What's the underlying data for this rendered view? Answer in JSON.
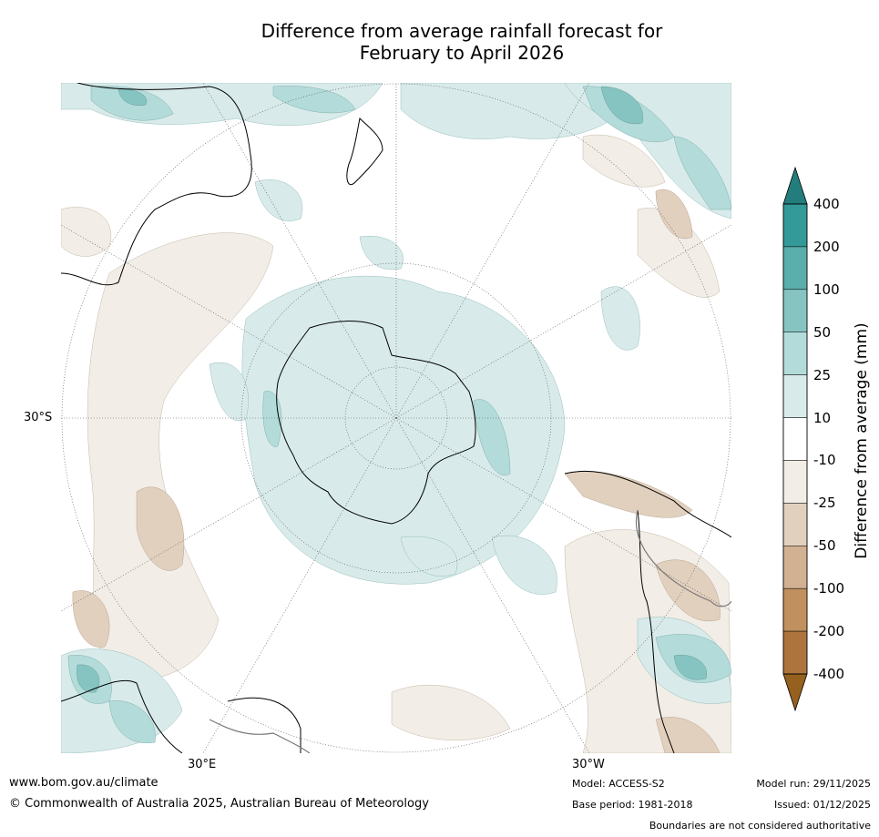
{
  "title_line1": "Difference from average rainfall forecast for",
  "title_line2": "February to April 2026",
  "map_labels": {
    "lat_30s": "30°S",
    "lon_30e": "30°E",
    "lon_30w": "30°W"
  },
  "colorbar": {
    "title": "Difference from average (mm)",
    "ticks": [
      "400",
      "200",
      "100",
      "50",
      "25",
      "10",
      "-10",
      "-25",
      "-50",
      "-100",
      "-200",
      "-400"
    ],
    "colors": [
      "#237d7d",
      "#339a99",
      "#5aaeab",
      "#86c4c2",
      "#b3dbd9",
      "#d8ebea",
      "#ffffff",
      "#f2ede6",
      "#e2d0be",
      "#d1b192",
      "#c0915f",
      "#ad743d",
      "#96601f"
    ]
  },
  "footer": {
    "url": "www.bom.gov.au/climate",
    "copyright": "© Commonwealth of Australia 2025, Australian Bureau of Meteorology",
    "model": "Model: ACCESS-S2",
    "base_period": "Base period: 1981-2018",
    "model_run": "Model run: 29/11/2025",
    "issued": "Issued: 01/12/2025",
    "disclaimer": "Boundaries are not considered authoritative"
  }
}
